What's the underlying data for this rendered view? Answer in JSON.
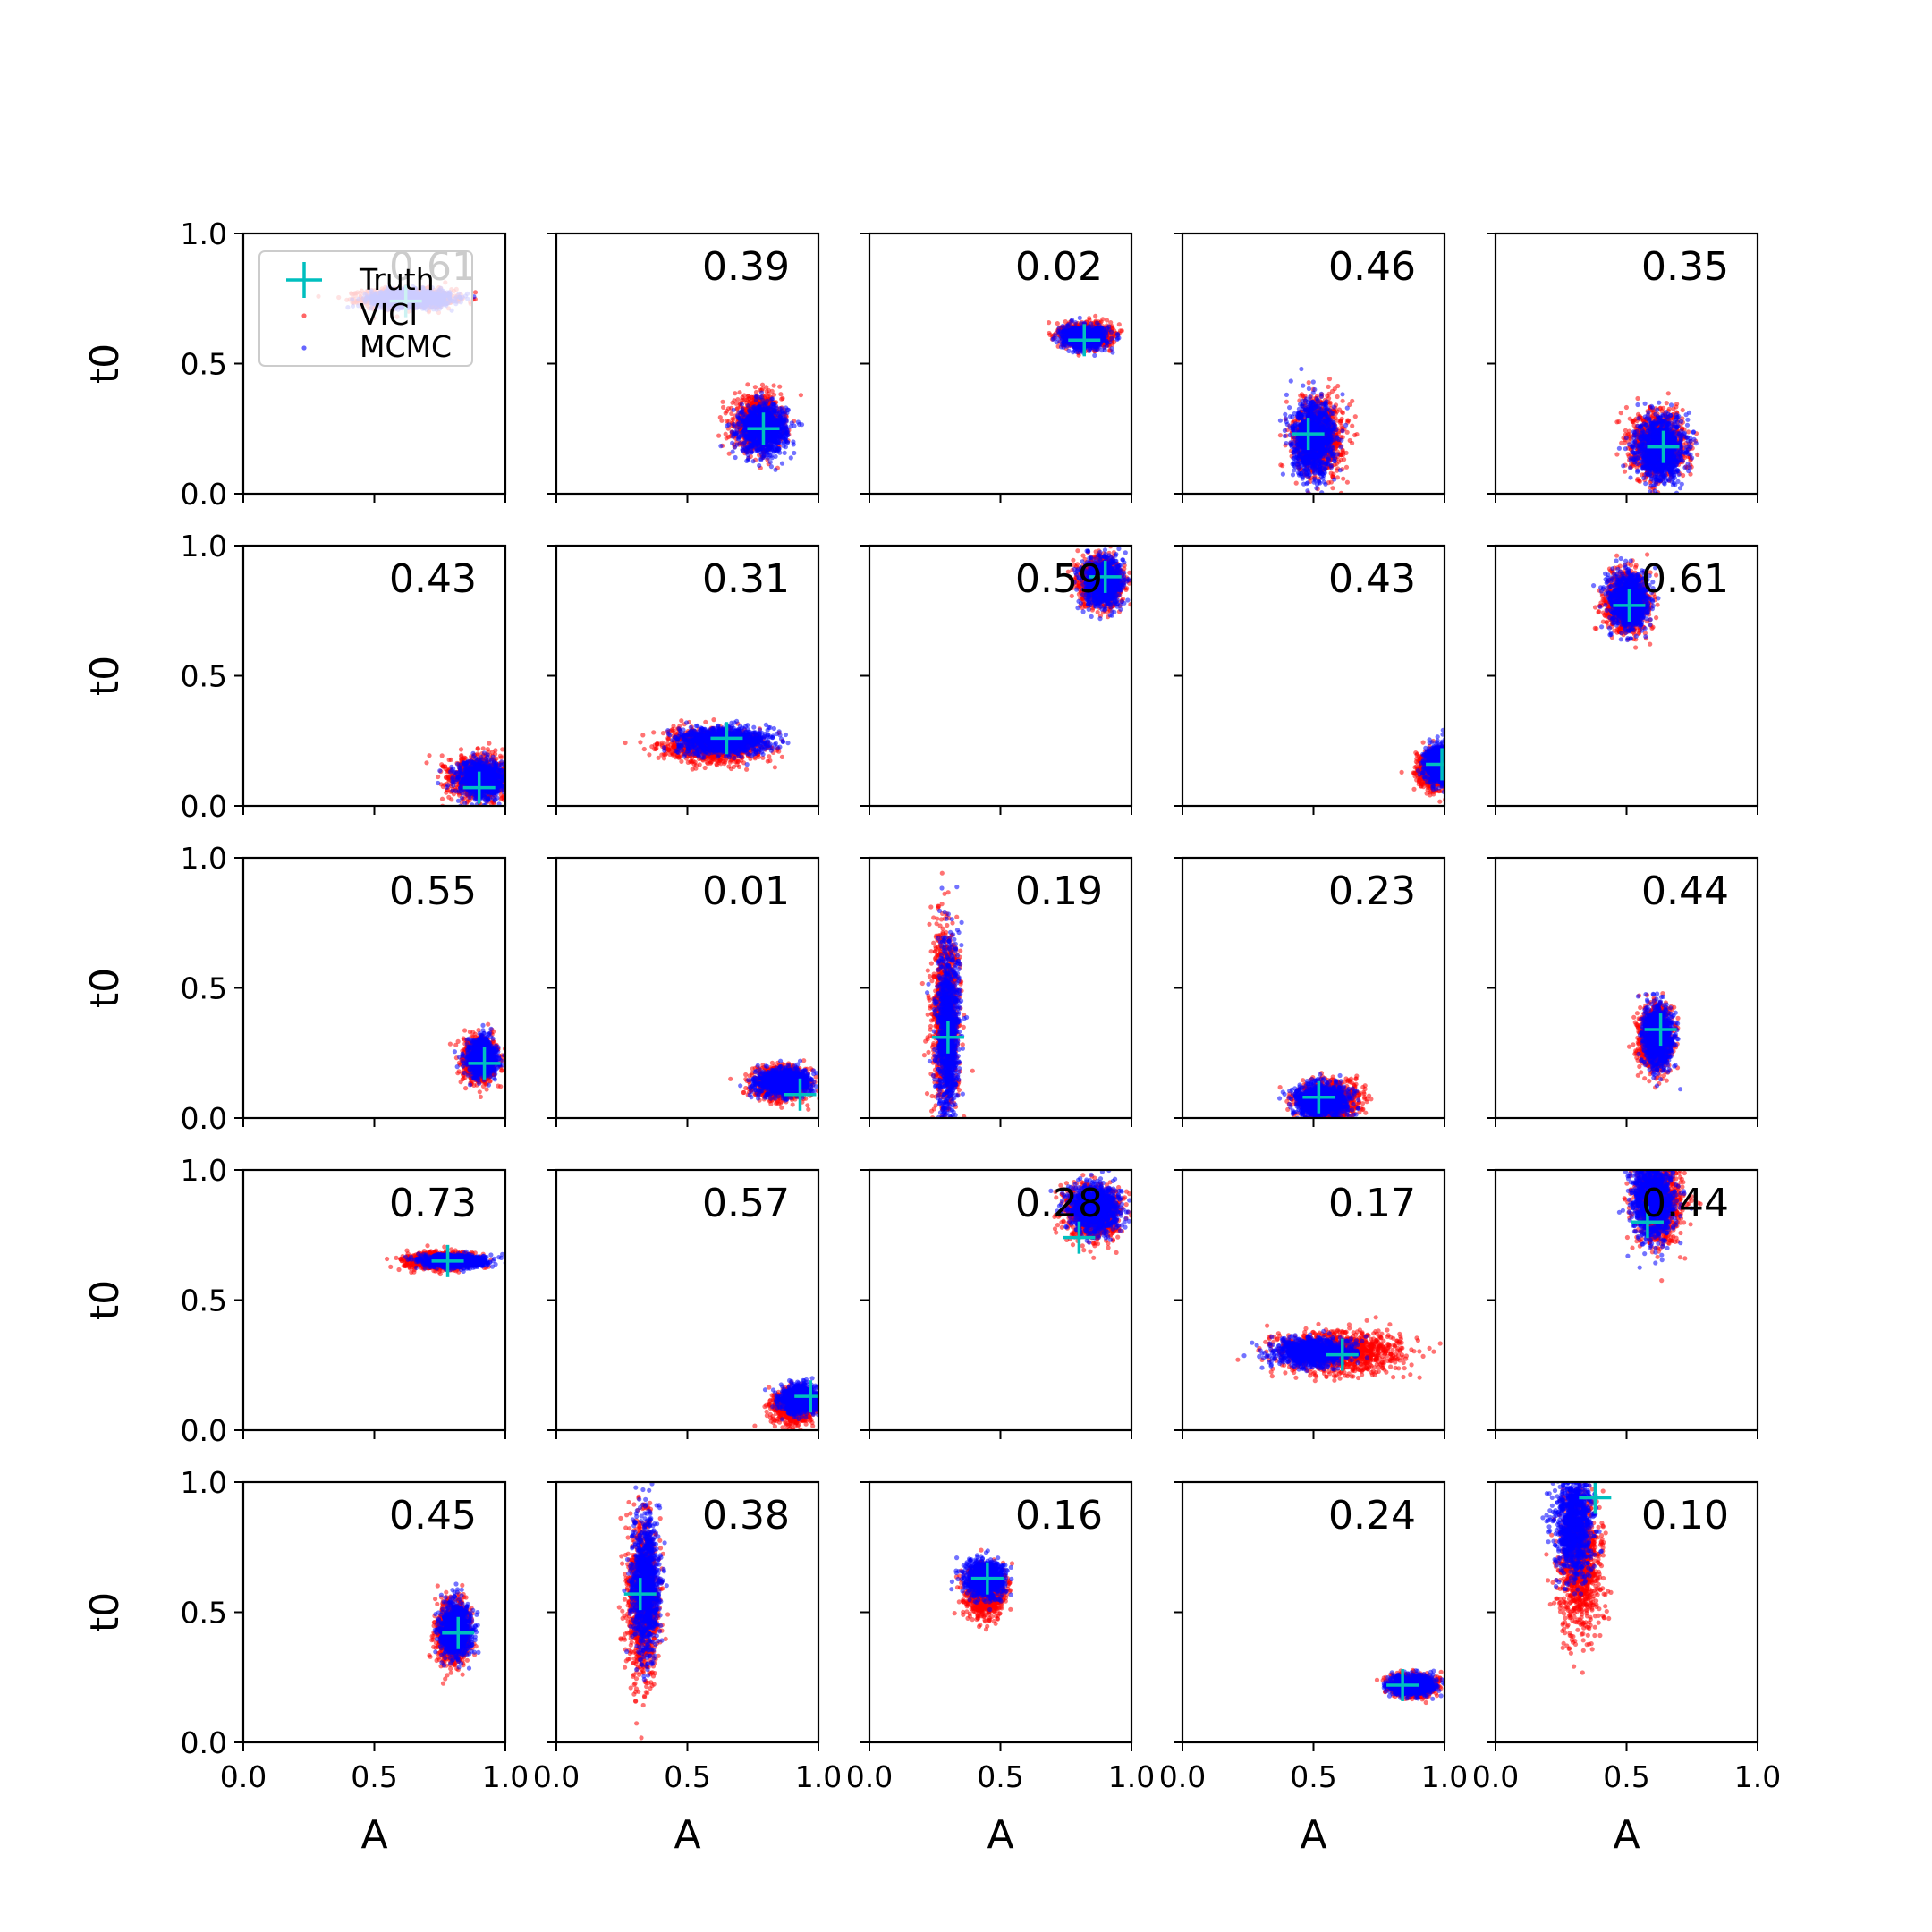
{
  "chart_data": {
    "type": "scatter",
    "grid": false,
    "xlim": [
      0,
      1
    ],
    "ylim": [
      0,
      1
    ],
    "xlabel": "A",
    "ylabel": "t0",
    "ticks": [
      "0.0",
      "0.5",
      "1.0"
    ],
    "legend": {
      "placement": "upper-left of first panel",
      "entries": [
        "Truth",
        "VICI",
        "MCMC"
      ]
    },
    "colors": {
      "vici": "#ff0000",
      "mcmc": "#0000ff",
      "truth": "#00bfbf"
    },
    "panels": [
      {
        "label": "0.61",
        "truth": [
          0.62,
          0.74
        ],
        "vici": {
          "cx": 0.63,
          "cy": 0.75,
          "sx": 0.085,
          "sy": 0.018
        },
        "mcmc": {
          "cx": 0.64,
          "cy": 0.75,
          "sx": 0.075,
          "sy": 0.016
        }
      },
      {
        "label": "0.39",
        "truth": [
          0.79,
          0.25
        ],
        "vici": {
          "cx": 0.77,
          "cy": 0.27,
          "sx": 0.045,
          "sy": 0.05
        },
        "mcmc": {
          "cx": 0.79,
          "cy": 0.25,
          "sx": 0.045,
          "sy": 0.045
        }
      },
      {
        "label": "0.02",
        "truth": [
          0.82,
          0.59
        ],
        "vici": {
          "cx": 0.83,
          "cy": 0.61,
          "sx": 0.045,
          "sy": 0.022
        },
        "mcmc": {
          "cx": 0.82,
          "cy": 0.6,
          "sx": 0.04,
          "sy": 0.02
        }
      },
      {
        "label": "0.46",
        "truth": [
          0.48,
          0.23
        ],
        "vici": {
          "cx": 0.52,
          "cy": 0.22,
          "sx": 0.045,
          "sy": 0.07
        },
        "mcmc": {
          "cx": 0.5,
          "cy": 0.21,
          "sx": 0.04,
          "sy": 0.07
        }
      },
      {
        "label": "0.35",
        "truth": [
          0.64,
          0.18
        ],
        "vici": {
          "cx": 0.62,
          "cy": 0.19,
          "sx": 0.05,
          "sy": 0.06
        },
        "mcmc": {
          "cx": 0.63,
          "cy": 0.17,
          "sx": 0.045,
          "sy": 0.06
        }
      },
      {
        "label": "0.43",
        "truth": [
          0.9,
          0.07
        ],
        "vici": {
          "cx": 0.9,
          "cy": 0.11,
          "sx": 0.055,
          "sy": 0.04
        },
        "mcmc": {
          "cx": 0.91,
          "cy": 0.1,
          "sx": 0.045,
          "sy": 0.035
        }
      },
      {
        "label": "0.31",
        "truth": [
          0.65,
          0.26
        ],
        "vici": {
          "cx": 0.6,
          "cy": 0.23,
          "sx": 0.095,
          "sy": 0.03
        },
        "mcmc": {
          "cx": 0.64,
          "cy": 0.25,
          "sx": 0.085,
          "sy": 0.025
        }
      },
      {
        "label": "0.59",
        "truth": [
          0.9,
          0.88
        ],
        "vici": {
          "cx": 0.88,
          "cy": 0.86,
          "sx": 0.04,
          "sy": 0.045
        },
        "mcmc": {
          "cx": 0.89,
          "cy": 0.86,
          "sx": 0.035,
          "sy": 0.045
        }
      },
      {
        "label": "0.43",
        "truth": [
          0.99,
          0.16
        ],
        "vici": {
          "cx": 0.96,
          "cy": 0.14,
          "sx": 0.03,
          "sy": 0.035
        },
        "mcmc": {
          "cx": 0.98,
          "cy": 0.16,
          "sx": 0.025,
          "sy": 0.035
        }
      },
      {
        "label": "0.61",
        "truth": [
          0.51,
          0.77
        ],
        "vici": {
          "cx": 0.5,
          "cy": 0.78,
          "sx": 0.04,
          "sy": 0.055
        },
        "mcmc": {
          "cx": 0.51,
          "cy": 0.79,
          "sx": 0.035,
          "sy": 0.05
        }
      },
      {
        "label": "0.55",
        "truth": [
          0.92,
          0.21
        ],
        "vici": {
          "cx": 0.9,
          "cy": 0.22,
          "sx": 0.03,
          "sy": 0.04
        },
        "mcmc": {
          "cx": 0.91,
          "cy": 0.23,
          "sx": 0.025,
          "sy": 0.035
        }
      },
      {
        "label": "0.01",
        "truth": [
          0.93,
          0.09
        ],
        "vici": {
          "cx": 0.86,
          "cy": 0.13,
          "sx": 0.05,
          "sy": 0.03
        },
        "mcmc": {
          "cx": 0.87,
          "cy": 0.14,
          "sx": 0.05,
          "sy": 0.025
        }
      },
      {
        "label": "0.19",
        "truth": [
          0.3,
          0.31
        ],
        "vici": {
          "cx": 0.29,
          "cy": 0.4,
          "sx": 0.025,
          "sy": 0.17
        },
        "mcmc": {
          "cx": 0.3,
          "cy": 0.33,
          "sx": 0.022,
          "sy": 0.16
        }
      },
      {
        "label": "0.23",
        "truth": [
          0.52,
          0.08
        ],
        "vici": {
          "cx": 0.56,
          "cy": 0.07,
          "sx": 0.055,
          "sy": 0.035
        },
        "mcmc": {
          "cx": 0.53,
          "cy": 0.07,
          "sx": 0.05,
          "sy": 0.03
        }
      },
      {
        "label": "0.44",
        "truth": [
          0.63,
          0.34
        ],
        "vici": {
          "cx": 0.61,
          "cy": 0.31,
          "sx": 0.03,
          "sy": 0.06
        },
        "mcmc": {
          "cx": 0.62,
          "cy": 0.31,
          "sx": 0.028,
          "sy": 0.055
        }
      },
      {
        "label": "0.73",
        "truth": [
          0.78,
          0.65
        ],
        "vici": {
          "cx": 0.75,
          "cy": 0.65,
          "sx": 0.06,
          "sy": 0.015
        },
        "mcmc": {
          "cx": 0.8,
          "cy": 0.65,
          "sx": 0.06,
          "sy": 0.012
        }
      },
      {
        "label": "0.57",
        "truth": [
          0.97,
          0.13
        ],
        "vici": {
          "cx": 0.91,
          "cy": 0.09,
          "sx": 0.04,
          "sy": 0.03
        },
        "mcmc": {
          "cx": 0.93,
          "cy": 0.12,
          "sx": 0.035,
          "sy": 0.025
        }
      },
      {
        "label": "0.28",
        "truth": [
          0.8,
          0.74
        ],
        "vici": {
          "cx": 0.85,
          "cy": 0.83,
          "sx": 0.05,
          "sy": 0.05
        },
        "mcmc": {
          "cx": 0.86,
          "cy": 0.85,
          "sx": 0.045,
          "sy": 0.045
        }
      },
      {
        "label": "0.17",
        "truth": [
          0.61,
          0.29
        ],
        "vici": {
          "cx": 0.6,
          "cy": 0.3,
          "sx": 0.12,
          "sy": 0.04
        },
        "mcmc": {
          "cx": 0.5,
          "cy": 0.3,
          "sx": 0.07,
          "sy": 0.025
        }
      },
      {
        "label": "0.44",
        "truth": [
          0.58,
          0.8
        ],
        "vici": {
          "cx": 0.62,
          "cy": 0.88,
          "sx": 0.045,
          "sy": 0.08
        },
        "mcmc": {
          "cx": 0.6,
          "cy": 0.89,
          "sx": 0.04,
          "sy": 0.08
        }
      },
      {
        "label": "0.45",
        "truth": [
          0.82,
          0.42
        ],
        "vici": {
          "cx": 0.8,
          "cy": 0.42,
          "sx": 0.03,
          "sy": 0.055
        },
        "mcmc": {
          "cx": 0.81,
          "cy": 0.43,
          "sx": 0.028,
          "sy": 0.05
        }
      },
      {
        "label": "0.38",
        "truth": [
          0.32,
          0.57
        ],
        "vici": {
          "cx": 0.33,
          "cy": 0.55,
          "sx": 0.03,
          "sy": 0.15
        },
        "mcmc": {
          "cx": 0.34,
          "cy": 0.6,
          "sx": 0.025,
          "sy": 0.13
        }
      },
      {
        "label": "0.16",
        "truth": [
          0.45,
          0.63
        ],
        "vici": {
          "cx": 0.44,
          "cy": 0.58,
          "sx": 0.035,
          "sy": 0.045
        },
        "mcmc": {
          "cx": 0.44,
          "cy": 0.63,
          "sx": 0.035,
          "sy": 0.035
        }
      },
      {
        "label": "0.24",
        "truth": [
          0.84,
          0.22
        ],
        "vici": {
          "cx": 0.88,
          "cy": 0.22,
          "sx": 0.04,
          "sy": 0.02
        },
        "mcmc": {
          "cx": 0.88,
          "cy": 0.22,
          "sx": 0.04,
          "sy": 0.018
        }
      },
      {
        "label": "0.10",
        "truth": [
          0.38,
          0.94
        ],
        "vici": {
          "cx": 0.32,
          "cy": 0.7,
          "sx": 0.04,
          "sy": 0.14
        },
        "mcmc": {
          "cx": 0.3,
          "cy": 0.85,
          "sx": 0.035,
          "sy": 0.11
        }
      }
    ]
  }
}
